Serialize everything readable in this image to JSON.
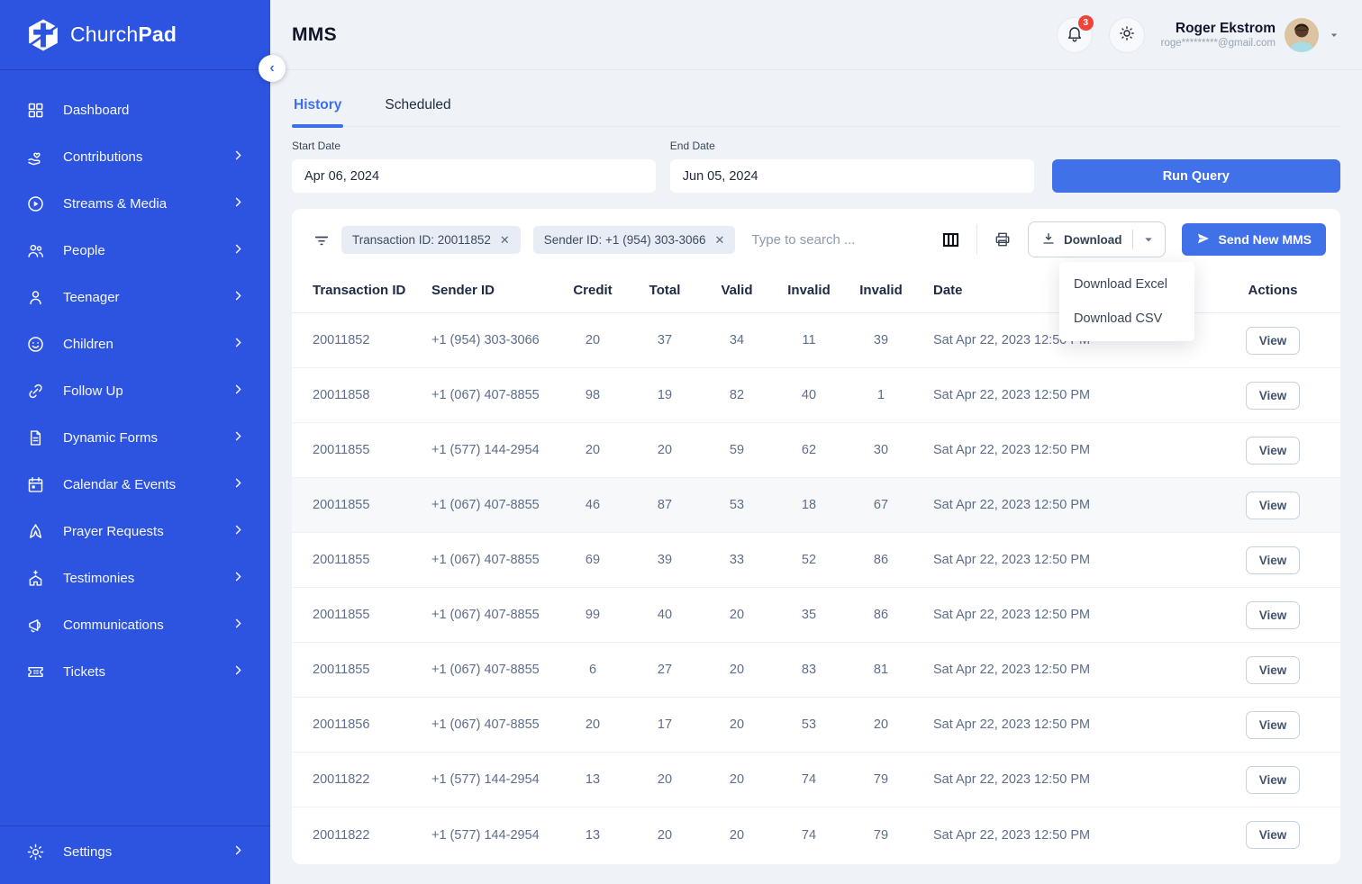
{
  "colors": {
    "sidebar-bg": "#2D54E0",
    "accent": "#4171E8",
    "page-bg": "#EFF2F7",
    "badge-red": "#F04438",
    "active-tab": "#3D6FE8"
  },
  "brand": {
    "name_regular": "Church",
    "name_bold": "Pad"
  },
  "sidebar": {
    "items": [
      {
        "label": "Dashboard",
        "icon": "dashboard-icon",
        "chevron": false
      },
      {
        "label": "Contributions",
        "icon": "contributions-icon",
        "chevron": true
      },
      {
        "label": "Streams & Media",
        "icon": "streams-media-icon",
        "chevron": true
      },
      {
        "label": "People",
        "icon": "people-icon",
        "chevron": true
      },
      {
        "label": "Teenager",
        "icon": "teenager-icon",
        "chevron": true
      },
      {
        "label": "Children",
        "icon": "children-icon",
        "chevron": true
      },
      {
        "label": "Follow Up",
        "icon": "follow-up-icon",
        "chevron": true
      },
      {
        "label": "Dynamic Forms",
        "icon": "dynamic-forms-icon",
        "chevron": true
      },
      {
        "label": "Calendar & Events",
        "icon": "calendar-icon",
        "chevron": true
      },
      {
        "label": "Prayer Requests",
        "icon": "prayer-icon",
        "chevron": true
      },
      {
        "label": "Testimonies",
        "icon": "testimonies-icon",
        "chevron": true
      },
      {
        "label": "Communications",
        "icon": "communications-icon",
        "chevron": true
      },
      {
        "label": "Tickets",
        "icon": "tickets-icon",
        "chevron": true
      }
    ],
    "settings": {
      "label": "Settings",
      "icon": "gear-icon",
      "chevron": true
    }
  },
  "header": {
    "title": "MMS",
    "notifications_count": "3",
    "user": {
      "name": "Roger Ekstrom",
      "email": "roge*********@gmail.com"
    }
  },
  "tabs": [
    {
      "label": "History",
      "active": true
    },
    {
      "label": "Scheduled",
      "active": false
    }
  ],
  "query": {
    "start_date": {
      "label": "Start Date",
      "value": "Apr 06, 2024"
    },
    "end_date": {
      "label": "End Date",
      "value": "Jun 05, 2024"
    },
    "run_button": "Run Query"
  },
  "toolbar": {
    "chips": [
      {
        "label": "Transaction ID: 20011852",
        "close": "✕"
      },
      {
        "label": "Sender ID: +1 (954) 303-3066",
        "close": "✕"
      }
    ],
    "search_placeholder": "Type to search ...",
    "download_label": "Download",
    "send_button": "Send New MMS",
    "download_menu": [
      "Download Excel",
      "Download CSV"
    ]
  },
  "table": {
    "columns": [
      "Transaction ID",
      "Sender ID",
      "Credit",
      "Total",
      "Valid",
      "Invalid",
      "Invalid",
      "Date",
      "Actions"
    ],
    "view_label": "View",
    "rows": [
      {
        "transaction_id": "20011852",
        "sender_id": "+1 (954) 303-3066",
        "credit": "20",
        "total": "37",
        "valid": "34",
        "invalid1": "11",
        "invalid2": "39",
        "date": "Sat Apr 22, 2023 12:50 PM",
        "highlighted": false
      },
      {
        "transaction_id": "20011858",
        "sender_id": "+1 (067) 407-8855",
        "credit": "98",
        "total": "19",
        "valid": "82",
        "invalid1": "40",
        "invalid2": "1",
        "date": "Sat Apr 22, 2023 12:50 PM",
        "highlighted": false
      },
      {
        "transaction_id": "20011855",
        "sender_id": "+1 (577) 144-2954",
        "credit": "20",
        "total": "20",
        "valid": "59",
        "invalid1": "62",
        "invalid2": "30",
        "date": "Sat Apr 22, 2023 12:50 PM",
        "highlighted": false
      },
      {
        "transaction_id": "20011855",
        "sender_id": "+1 (067) 407-8855",
        "credit": "46",
        "total": "87",
        "valid": "53",
        "invalid1": "18",
        "invalid2": "67",
        "date": "Sat Apr 22, 2023 12:50 PM",
        "highlighted": true
      },
      {
        "transaction_id": "20011855",
        "sender_id": "+1 (067) 407-8855",
        "credit": "69",
        "total": "39",
        "valid": "33",
        "invalid1": "52",
        "invalid2": "86",
        "date": "Sat Apr 22, 2023 12:50 PM",
        "highlighted": false
      },
      {
        "transaction_id": "20011855",
        "sender_id": "+1 (067) 407-8855",
        "credit": "99",
        "total": "40",
        "valid": "20",
        "invalid1": "35",
        "invalid2": "86",
        "date": "Sat Apr 22, 2023 12:50 PM",
        "highlighted": false
      },
      {
        "transaction_id": "20011855",
        "sender_id": "+1 (067) 407-8855",
        "credit": "6",
        "total": "27",
        "valid": "20",
        "invalid1": "83",
        "invalid2": "81",
        "date": "Sat Apr 22, 2023 12:50 PM",
        "highlighted": false
      },
      {
        "transaction_id": "20011856",
        "sender_id": "+1 (067) 407-8855",
        "credit": "20",
        "total": "17",
        "valid": "20",
        "invalid1": "53",
        "invalid2": "20",
        "date": "Sat Apr 22, 2023 12:50 PM",
        "highlighted": false
      },
      {
        "transaction_id": "20011822",
        "sender_id": "+1 (577) 144-2954",
        "credit": "13",
        "total": "20",
        "valid": "20",
        "invalid1": "74",
        "invalid2": "79",
        "date": "Sat Apr 22, 2023 12:50 PM",
        "highlighted": false
      },
      {
        "transaction_id": "20011822",
        "sender_id": "+1 (577) 144-2954",
        "credit": "13",
        "total": "20",
        "valid": "20",
        "invalid1": "74",
        "invalid2": "79",
        "date": "Sat Apr 22, 2023 12:50 PM",
        "highlighted": false
      }
    ]
  },
  "collapse_glyph": "‹"
}
